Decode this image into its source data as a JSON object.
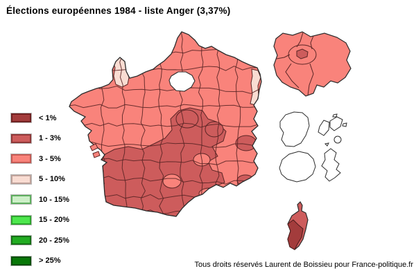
{
  "title": "Élections européennes 1984 - liste Anger (3,37%)",
  "footer": "Tous droits réservés Laurent de Boissieu pour France-politique.fr",
  "legend": {
    "items": [
      {
        "label": "< 1%",
        "fill": "#A33C3C",
        "border": "#702222"
      },
      {
        "label": "1 - 3%",
        "fill": "#CD5C5C",
        "border": "#8F3838"
      },
      {
        "label": "3 - 5%",
        "fill": "#F9837B",
        "border": "#C45A54"
      },
      {
        "label": "5 - 10%",
        "fill": "#F9DCD2",
        "border": "#BFA29A"
      },
      {
        "label": "10 - 15%",
        "fill": "#CDEFC8",
        "border": "#5FAF5F"
      },
      {
        "label": "15 - 20%",
        "fill": "#4DE74D",
        "border": "#2DA42D"
      },
      {
        "label": "20 - 25%",
        "fill": "#22AC22",
        "border": "#166F16"
      },
      {
        "label": "> 25%",
        "fill": "#087808",
        "border": "#045004"
      }
    ]
  },
  "map": {
    "type": "choropleth",
    "subject": "Résultats par département, France métropolitaine avec encart Île-de-France, Corse et outre-mer",
    "sea_color": "#FFFFFF",
    "coast_color": "#2B2B2B",
    "department_border_color": "#5A2525",
    "default_category": "3 - 5%",
    "category_regions": {
      "< 1%": [
        "Corse-du-Sud"
      ],
      "1 - 3%": [
        "grand quart sud-ouest et Massif central",
        "centre (Allier, Loire)",
        "Savoie",
        "arrière-pays niçois",
        "Paris",
        "Haute-Corse"
      ],
      "3 - 5%": [
        "majorité des autres départements"
      ],
      "5 - 10%": [
        "Manche",
        "Alsace"
      ],
      "no_data_outline_only": [
        "Guyane",
        "Guadeloupe",
        "La Réunion",
        "Martinique"
      ]
    }
  }
}
